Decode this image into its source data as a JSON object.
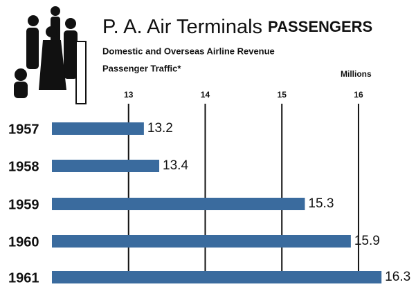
{
  "chart_data": {
    "type": "barh",
    "title": "P. A. Air Terminals",
    "title_emphasis": "PASSENGERS",
    "subtitle": [
      "Domestic and Overseas Airline Revenue",
      "Passenger Traffic*"
    ],
    "x_label": "Millions",
    "categories": [
      "1957",
      "1958",
      "1959",
      "1960",
      "1961"
    ],
    "values": [
      13.2,
      13.4,
      15.3,
      15.9,
      16.3
    ],
    "color": "#3a6b9e",
    "xlim": [
      12,
      16.75
    ],
    "xticks": [
      13,
      14,
      15,
      16
    ],
    "grid": true
  }
}
